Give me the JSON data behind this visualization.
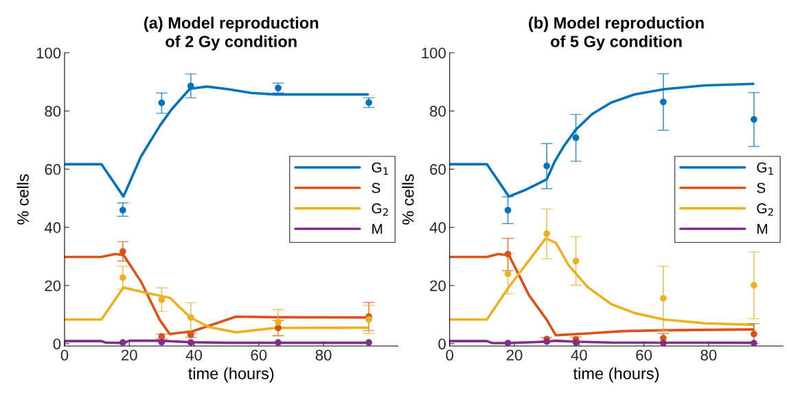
{
  "chart_data": [
    {
      "type": "line",
      "title": "(a) Model reproduction\nof 2 Gy condition",
      "xlabel": "time (hours)",
      "ylabel": "% cells",
      "xlim": [
        0,
        103
      ],
      "xticks": [
        0,
        20,
        40,
        60,
        80
      ],
      "ylim": [
        -0.8,
        100
      ],
      "yticks": [
        0,
        20,
        40,
        60,
        80,
        100
      ],
      "legend": "center right",
      "grid": false,
      "series": [
        {
          "name": "G$_{1}$",
          "color": "#0072bd",
          "x": [
            0,
            11.4,
            18.2,
            23.6,
            29.6,
            33.1,
            38.7,
            44,
            50.5,
            57.8,
            65,
            79.6,
            93.7
          ],
          "values": [
            61.7,
            61.7,
            50.6,
            64.3,
            75.2,
            80.6,
            87.6,
            88.4,
            87.5,
            86.2,
            85.7,
            85.7,
            85.7
          ]
        },
        {
          "name": "S",
          "color": "#d95319",
          "x": [
            0,
            11.4,
            15.6,
            18.2,
            23.6,
            29.4,
            32.5,
            39.6,
            53,
            65,
            93.7
          ],
          "values": [
            29.8,
            29.8,
            30.8,
            30.5,
            21.4,
            8.2,
            3.3,
            4.3,
            9.3,
            9.1,
            9.0
          ]
        },
        {
          "name": "G$_{2}$",
          "color": "#edb120",
          "x": [
            0,
            11.4,
            18.2,
            25.1,
            32.5,
            38.9,
            44.7,
            53,
            65,
            93.7
          ],
          "values": [
            8.3,
            8.3,
            19.3,
            17.5,
            15.8,
            9.0,
            5.7,
            3.9,
            5.4,
            5.5
          ]
        },
        {
          "name": "M",
          "color": "#7e2f8e",
          "x": [
            0,
            11.4,
            12.7,
            18.2,
            20,
            29.6,
            38.9,
            50.5,
            93.7
          ],
          "values": [
            0.9,
            0.9,
            0.4,
            0.2,
            1.0,
            1.0,
            0.5,
            0.3,
            0.3
          ]
        },
        {
          "type": "scatter",
          "color": "#0072bd",
          "x": [
            18,
            30,
            39,
            66,
            94
          ],
          "values": [
            45.9,
            82.8,
            88.6,
            87.9,
            82.9
          ],
          "errors": [
            [
              43.8,
              48.4
            ],
            [
              79.2,
              86.2
            ],
            [
              84.5,
              92.7
            ],
            [
              86.2,
              89.6
            ],
            [
              81.2,
              84.5
            ]
          ]
        },
        {
          "type": "scatter",
          "color": "#d95319",
          "x": [
            18,
            30,
            39,
            66,
            94
          ],
          "values": [
            31.7,
            2.5,
            3.0,
            5.4,
            9.3
          ],
          "errors": [
            [
              28.4,
              35.1
            ],
            [
              1.7,
              3.3
            ],
            [
              2.2,
              3.7
            ],
            [
              2.7,
              8.0
            ],
            [
              4.5,
              14.2
            ]
          ]
        },
        {
          "type": "scatter",
          "color": "#edb120",
          "x": [
            18,
            30,
            39,
            66,
            94
          ],
          "values": [
            22.7,
            15.1,
            9.0,
            7.4,
            8.3
          ],
          "errors": [
            [
              18.7,
              26.6
            ],
            [
              11.1,
              19.2
            ],
            [
              3.5,
              14.1
            ],
            [
              2.9,
              11.7
            ],
            [
              3.5,
              13.2
            ]
          ]
        },
        {
          "type": "scatter",
          "color": "#7e2f8e",
          "x": [
            18,
            30,
            39,
            66,
            94
          ],
          "values": [
            0.4,
            0.5,
            0.4,
            0.4,
            0.4
          ]
        }
      ]
    },
    {
      "type": "line",
      "title": "(b) Model reproduction\nof 5 Gy condition",
      "xlabel": "time (hours)",
      "ylabel": "% cells",
      "xlim": [
        0,
        103
      ],
      "xticks": [
        0,
        20,
        40,
        60,
        80
      ],
      "ylim": [
        -0.8,
        100
      ],
      "yticks": [
        0,
        20,
        40,
        60,
        80,
        100
      ],
      "legend": "center right",
      "grid": false,
      "series": [
        {
          "name": "G$_{1}$",
          "color": "#0072bd",
          "x": [
            0,
            11.5,
            18.3,
            23.7,
            30,
            32.5,
            35.4,
            39,
            44.1,
            49.9,
            57.2,
            66.3,
            78.9,
            93.8
          ],
          "values": [
            61.7,
            61.7,
            50.6,
            53,
            56.5,
            62.7,
            68.1,
            73.6,
            79,
            82.9,
            85.7,
            87.5,
            88.8,
            89.3
          ]
        },
        {
          "name": "S",
          "color": "#d95319",
          "x": [
            0,
            11.5,
            15,
            18.3,
            24.5,
            30,
            32.8,
            42.6,
            53.5,
            66.3,
            93.8
          ],
          "values": [
            29.8,
            29.8,
            30.8,
            30.5,
            16.7,
            8.2,
            2.9,
            3.5,
            4.3,
            4.6,
            4.9
          ]
        },
        {
          "name": "G$_{2}$",
          "color": "#edb120",
          "x": [
            0,
            11.5,
            18.3,
            29.7,
            32.8,
            36.8,
            42.6,
            49.9,
            57.2,
            66.3,
            78.9,
            93.8
          ],
          "values": [
            8.3,
            8.3,
            19.5,
            36.2,
            34.7,
            26.9,
            19.5,
            13.6,
            10.5,
            8.3,
            7.0,
            6.5
          ]
        },
        {
          "name": "M",
          "color": "#7e2f8e",
          "x": [
            0,
            11.5,
            13.2,
            18.3,
            29.7,
            32.5,
            38.9,
            49.9,
            93.8
          ],
          "values": [
            0.9,
            0.9,
            0.2,
            0.2,
            0.7,
            1.0,
            0.7,
            0.4,
            0.3
          ]
        },
        {
          "type": "scatter",
          "color": "#0072bd",
          "x": [
            18,
            30,
            39,
            66,
            94
          ],
          "values": [
            45.9,
            61.1,
            70.8,
            83.1,
            77.1
          ],
          "errors": [
            [
              41.3,
              50.5
            ],
            [
              53.3,
              68.8
            ],
            [
              62.7,
              78.8
            ],
            [
              73.4,
              92.8
            ],
            [
              67.8,
              86.3
            ]
          ]
        },
        {
          "type": "scatter",
          "color": "#d95319",
          "x": [
            18,
            30,
            39,
            66,
            94
          ],
          "values": [
            30.8,
            1.6,
            1.5,
            1.9,
            3.3
          ],
          "errors": [
            [
              25.1,
              36.2
            ],
            [
              1.0,
              2.1
            ],
            [
              0.8,
              2.3
            ],
            [
              0.4,
              3.5
            ],
            [
              0,
              6.9
            ]
          ]
        },
        {
          "type": "scatter",
          "color": "#edb120",
          "x": [
            18,
            30,
            39,
            66,
            94
          ],
          "values": [
            24.0,
            37.8,
            28.4,
            15.6,
            20.1
          ],
          "errors": [
            [
              17.1,
              30.9
            ],
            [
              29.2,
              46.3
            ],
            [
              20.1,
              36.8
            ],
            [
              4.5,
              26.6
            ],
            [
              8.6,
              31.5
            ]
          ]
        },
        {
          "type": "scatter",
          "color": "#7e2f8e",
          "x": [
            18,
            30,
            39,
            66,
            94
          ],
          "values": [
            0.2,
            0.7,
            0.4,
            0.2,
            0.2
          ]
        }
      ]
    }
  ]
}
